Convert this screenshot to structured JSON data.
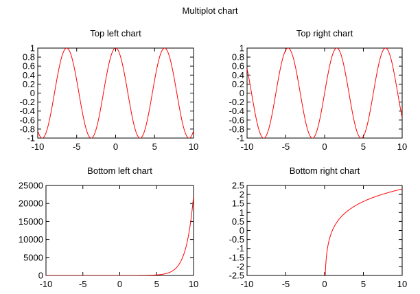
{
  "title": "Multiplot chart",
  "chart_data": [
    {
      "type": "line",
      "title": "Top left chart",
      "function": "cos(x)",
      "xlim": [
        -10,
        10
      ],
      "ylim": [
        -1,
        1
      ],
      "xticks": [
        -10,
        -5,
        0,
        5,
        10
      ],
      "yticks": [
        -1,
        -0.8,
        -0.6,
        -0.4,
        -0.2,
        0,
        0.2,
        0.4,
        0.6,
        0.8,
        1
      ],
      "color": "#ff0000",
      "xlabel": "",
      "ylabel": "",
      "grid": false,
      "series": [
        {
          "x": [
            -10,
            -9,
            -8,
            -7,
            -6,
            -5,
            -4,
            -3,
            -2,
            -1,
            0,
            1,
            2,
            3,
            4,
            5,
            6,
            7,
            8,
            9,
            10
          ],
          "y": [
            -0.84,
            -0.91,
            -0.15,
            0.75,
            0.96,
            0.28,
            -0.65,
            -0.99,
            -0.42,
            0.54,
            1,
            0.54,
            -0.42,
            -0.99,
            -0.65,
            0.28,
            0.96,
            0.75,
            -0.15,
            -0.91,
            -0.84
          ]
        }
      ]
    },
    {
      "type": "line",
      "title": "Top right chart",
      "function": "sin(x)",
      "xlim": [
        -10,
        10
      ],
      "ylim": [
        -1,
        1
      ],
      "xticks": [
        -10,
        -5,
        0,
        5,
        10
      ],
      "yticks": [
        -1,
        -0.8,
        -0.6,
        -0.4,
        -0.2,
        0,
        0.2,
        0.4,
        0.6,
        0.8,
        1
      ],
      "color": "#ff0000",
      "xlabel": "",
      "ylabel": "",
      "grid": false,
      "series": [
        {
          "x": [
            -10,
            -9,
            -8,
            -7,
            -6,
            -5,
            -4,
            -3,
            -2,
            -1,
            0,
            1,
            2,
            3,
            4,
            5,
            6,
            7,
            8,
            9,
            10
          ],
          "y": [
            0.54,
            -0.41,
            -0.99,
            -0.66,
            0.28,
            0.96,
            0.76,
            -0.14,
            -0.91,
            -0.84,
            0,
            0.84,
            0.91,
            0.14,
            -0.76,
            -0.96,
            -0.28,
            0.66,
            0.99,
            0.41,
            -0.54
          ]
        }
      ]
    },
    {
      "type": "line",
      "title": "Bottom left chart",
      "function": "exp(x)",
      "xlim": [
        -10,
        10
      ],
      "ylim": [
        0,
        25000
      ],
      "xticks": [
        -10,
        -5,
        0,
        5,
        10
      ],
      "yticks": [
        0,
        5000,
        10000,
        15000,
        20000,
        25000
      ],
      "color": "#ff0000",
      "xlabel": "",
      "ylabel": "",
      "grid": false,
      "series": [
        {
          "x": [
            -10,
            -5,
            0,
            2,
            4,
            5,
            6,
            7,
            8,
            8.5,
            9,
            9.5,
            10
          ],
          "y": [
            0,
            0.01,
            1,
            7.4,
            54.6,
            148.4,
            403.4,
            1096.6,
            2981,
            4914.8,
            8103.1,
            13359.7,
            22026.5
          ]
        }
      ]
    },
    {
      "type": "line",
      "title": "Bottom right chart",
      "function": "log(x)",
      "xlim": [
        -10,
        10
      ],
      "ylim": [
        -2.5,
        2.5
      ],
      "xticks": [
        -10,
        -5,
        0,
        5,
        10
      ],
      "yticks": [
        -2.5,
        -2,
        -1.5,
        -1,
        -0.5,
        0,
        0.5,
        1,
        1.5,
        2,
        2.5
      ],
      "color": "#ff0000",
      "xlabel": "",
      "ylabel": "",
      "grid": false,
      "series": [
        {
          "x": [
            0.1,
            0.2,
            0.5,
            1,
            2,
            3,
            4,
            5,
            6,
            7,
            8,
            9,
            10
          ],
          "y": [
            -2.3,
            -1.61,
            -0.69,
            0,
            0.69,
            1.1,
            1.39,
            1.61,
            1.79,
            1.95,
            2.08,
            2.2,
            2.3
          ]
        }
      ]
    }
  ]
}
